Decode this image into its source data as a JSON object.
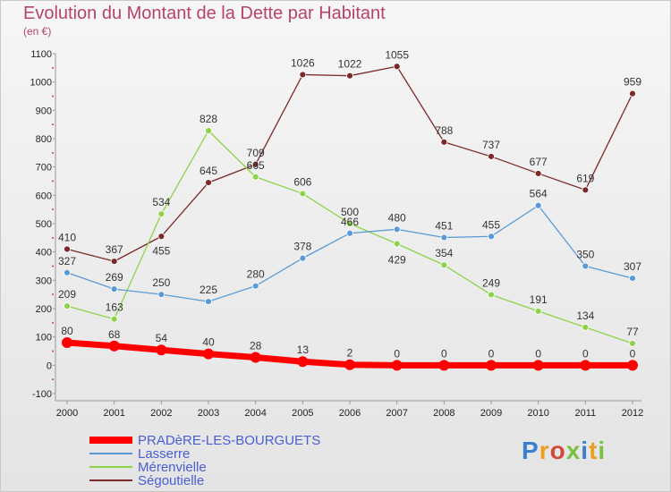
{
  "header": {
    "title": "Evolution du Montant de la Dette par Habitant",
    "subtitle": "(en €)"
  },
  "logo": {
    "text": "Proxiti"
  },
  "chart_data": {
    "type": "line",
    "title": "Evolution du Montant de la Dette par Habitant",
    "subtitle": "(en €)",
    "xlabel": "",
    "ylabel": "",
    "x": [
      "2000",
      "2001",
      "2002",
      "2003",
      "2004",
      "2005",
      "2006",
      "2007",
      "2008",
      "2009",
      "2010",
      "2011",
      "2012"
    ],
    "ylim": [
      -100,
      1100
    ],
    "yticks": [
      -100,
      0,
      100,
      200,
      300,
      400,
      500,
      600,
      700,
      800,
      900,
      1000,
      1100
    ],
    "grid": false,
    "legend_position": "bottom-left",
    "series": [
      {
        "name": "PRADèRE-LES-BOURGUETS",
        "color": "#ff0000",
        "bold": true,
        "values": [
          80,
          68,
          54,
          40,
          28,
          13,
          2,
          0,
          0,
          0,
          0,
          0,
          0
        ]
      },
      {
        "name": "Lasserre",
        "color": "#5b9bd5",
        "bold": false,
        "values": [
          327,
          269,
          250,
          225,
          280,
          378,
          466,
          480,
          451,
          455,
          564,
          350,
          307
        ]
      },
      {
        "name": "Mérenvielle",
        "color": "#8ed24a",
        "bold": false,
        "values": [
          209,
          163,
          534,
          828,
          665,
          606,
          500,
          429,
          354,
          249,
          191,
          134,
          77
        ]
      },
      {
        "name": "Ségoutielle",
        "color": "#7a2a2a",
        "bold": false,
        "values": [
          410,
          367,
          455,
          645,
          709,
          1026,
          1022,
          1055,
          788,
          737,
          677,
          619,
          959
        ]
      }
    ]
  }
}
